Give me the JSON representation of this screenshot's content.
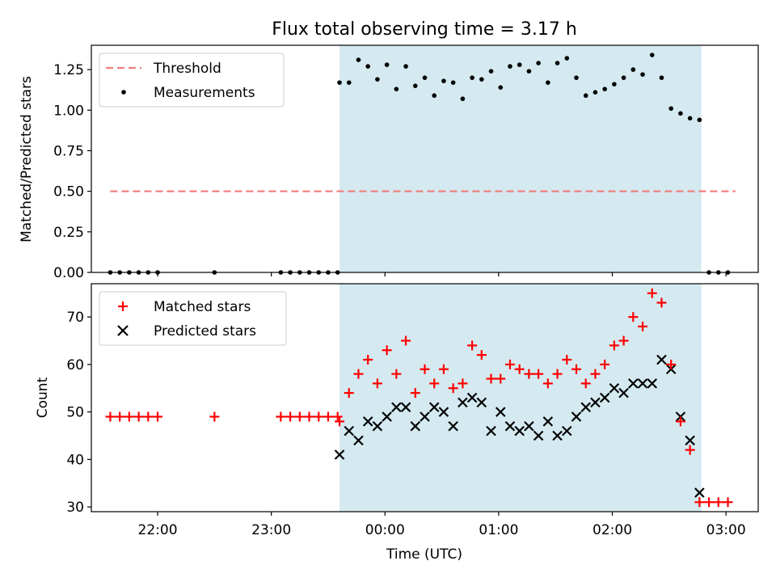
{
  "title": "Flux total observing time = 3.17 h",
  "chart_data": [
    {
      "type": "line+scatter",
      "ylabel": "Matched/Predicted stars",
      "xlim": [
        "21:25",
        "03:17"
      ],
      "ylim": [
        0.0,
        1.4
      ],
      "yticks": [
        "0.00",
        "0.25",
        "0.50",
        "0.75",
        "1.00",
        "1.25"
      ],
      "grid": false,
      "legend_position": "upper-left",
      "shaded_span": {
        "start": "23:36",
        "end": "02:47",
        "color": "#d4eaf0"
      },
      "threshold": {
        "name": "Threshold",
        "value": 0.5,
        "x_start": "21:35",
        "x_end": "03:05",
        "color": "#f08080",
        "style": "dashed"
      },
      "series": [
        {
          "name": "Measurements",
          "color": "#000000",
          "marker": "dot",
          "x": [
            "21:35",
            "21:40",
            "21:45",
            "21:50",
            "21:55",
            "22:00",
            "22:30",
            "23:05",
            "23:10",
            "23:15",
            "23:20",
            "23:25",
            "23:30",
            "23:35",
            "23:36",
            "23:41",
            "23:46",
            "23:51",
            "23:56",
            "00:01",
            "00:06",
            "00:11",
            "00:16",
            "00:21",
            "00:26",
            "00:31",
            "00:36",
            "00:41",
            "00:46",
            "00:51",
            "00:56",
            "01:01",
            "01:06",
            "01:11",
            "01:16",
            "01:21",
            "01:26",
            "01:31",
            "01:36",
            "01:41",
            "01:46",
            "01:51",
            "01:56",
            "02:01",
            "02:06",
            "02:11",
            "02:16",
            "02:21",
            "02:26",
            "02:31",
            "02:36",
            "02:41",
            "02:46",
            "02:51",
            "02:56",
            "03:01"
          ],
          "y": [
            0,
            0,
            0,
            0,
            0,
            0,
            0,
            0,
            0,
            0,
            0,
            0,
            0,
            0,
            1.17,
            1.17,
            1.31,
            1.27,
            1.19,
            1.28,
            1.13,
            1.27,
            1.15,
            1.2,
            1.09,
            1.18,
            1.17,
            1.07,
            1.2,
            1.19,
            1.24,
            1.14,
            1.27,
            1.28,
            1.24,
            1.29,
            1.17,
            1.29,
            1.32,
            1.2,
            1.09,
            1.11,
            1.13,
            1.16,
            1.2,
            1.25,
            1.22,
            1.34,
            1.2,
            1.01,
            0.98,
            0.95,
            0.94,
            0,
            0,
            0
          ]
        }
      ]
    },
    {
      "type": "scatter",
      "xlabel": "Time (UTC)",
      "ylabel": "Count",
      "xlim": [
        "21:25",
        "03:17"
      ],
      "xticks": [
        "22:00",
        "23:00",
        "00:00",
        "01:00",
        "02:00",
        "03:00"
      ],
      "ylim": [
        29,
        77
      ],
      "yticks": [
        "30",
        "40",
        "50",
        "60",
        "70"
      ],
      "grid": false,
      "legend_position": "upper-left",
      "shaded_span": {
        "start": "23:36",
        "end": "02:47",
        "color": "#d4eaf0"
      },
      "series": [
        {
          "name": "Matched stars",
          "color": "#ff0000",
          "marker": "plus",
          "x": [
            "21:35",
            "21:40",
            "21:45",
            "21:50",
            "21:55",
            "22:00",
            "22:30",
            "23:05",
            "23:10",
            "23:15",
            "23:20",
            "23:25",
            "23:30",
            "23:35",
            "23:36",
            "23:41",
            "23:46",
            "23:51",
            "23:56",
            "00:01",
            "00:06",
            "00:11",
            "00:16",
            "00:21",
            "00:26",
            "00:31",
            "00:36",
            "00:41",
            "00:46",
            "00:51",
            "00:56",
            "01:01",
            "01:06",
            "01:11",
            "01:16",
            "01:21",
            "01:26",
            "01:31",
            "01:36",
            "01:41",
            "01:46",
            "01:51",
            "01:56",
            "02:01",
            "02:06",
            "02:11",
            "02:16",
            "02:21",
            "02:26",
            "02:31",
            "02:36",
            "02:41",
            "02:46",
            "02:51",
            "02:56",
            "03:01"
          ],
          "y": [
            49,
            49,
            49,
            49,
            49,
            49,
            49,
            49,
            49,
            49,
            49,
            49,
            49,
            49,
            48,
            54,
            58,
            61,
            56,
            63,
            58,
            65,
            54,
            59,
            56,
            59,
            55,
            56,
            64,
            62,
            57,
            57,
            60,
            59,
            58,
            58,
            56,
            58,
            61,
            59,
            56,
            58,
            60,
            64,
            65,
            70,
            68,
            75,
            73,
            60,
            48,
            42,
            31,
            31,
            31,
            31
          ]
        },
        {
          "name": "Predicted stars",
          "color": "#000000",
          "marker": "x",
          "x": [
            "23:36",
            "23:41",
            "23:46",
            "23:51",
            "23:56",
            "00:01",
            "00:06",
            "00:11",
            "00:16",
            "00:21",
            "00:26",
            "00:31",
            "00:36",
            "00:41",
            "00:46",
            "00:51",
            "00:56",
            "01:01",
            "01:06",
            "01:11",
            "01:16",
            "01:21",
            "01:26",
            "01:31",
            "01:36",
            "01:41",
            "01:46",
            "01:51",
            "01:56",
            "02:01",
            "02:06",
            "02:11",
            "02:16",
            "02:21",
            "02:26",
            "02:31",
            "02:36",
            "02:41",
            "02:46"
          ],
          "y": [
            41,
            46,
            44,
            48,
            47,
            49,
            51,
            51,
            47,
            49,
            51,
            50,
            47,
            52,
            53,
            52,
            46,
            50,
            47,
            46,
            47,
            45,
            48,
            45,
            46,
            49,
            51,
            52,
            53,
            55,
            54,
            56,
            56,
            56,
            61,
            59,
            49,
            44,
            33
          ]
        }
      ]
    }
  ]
}
